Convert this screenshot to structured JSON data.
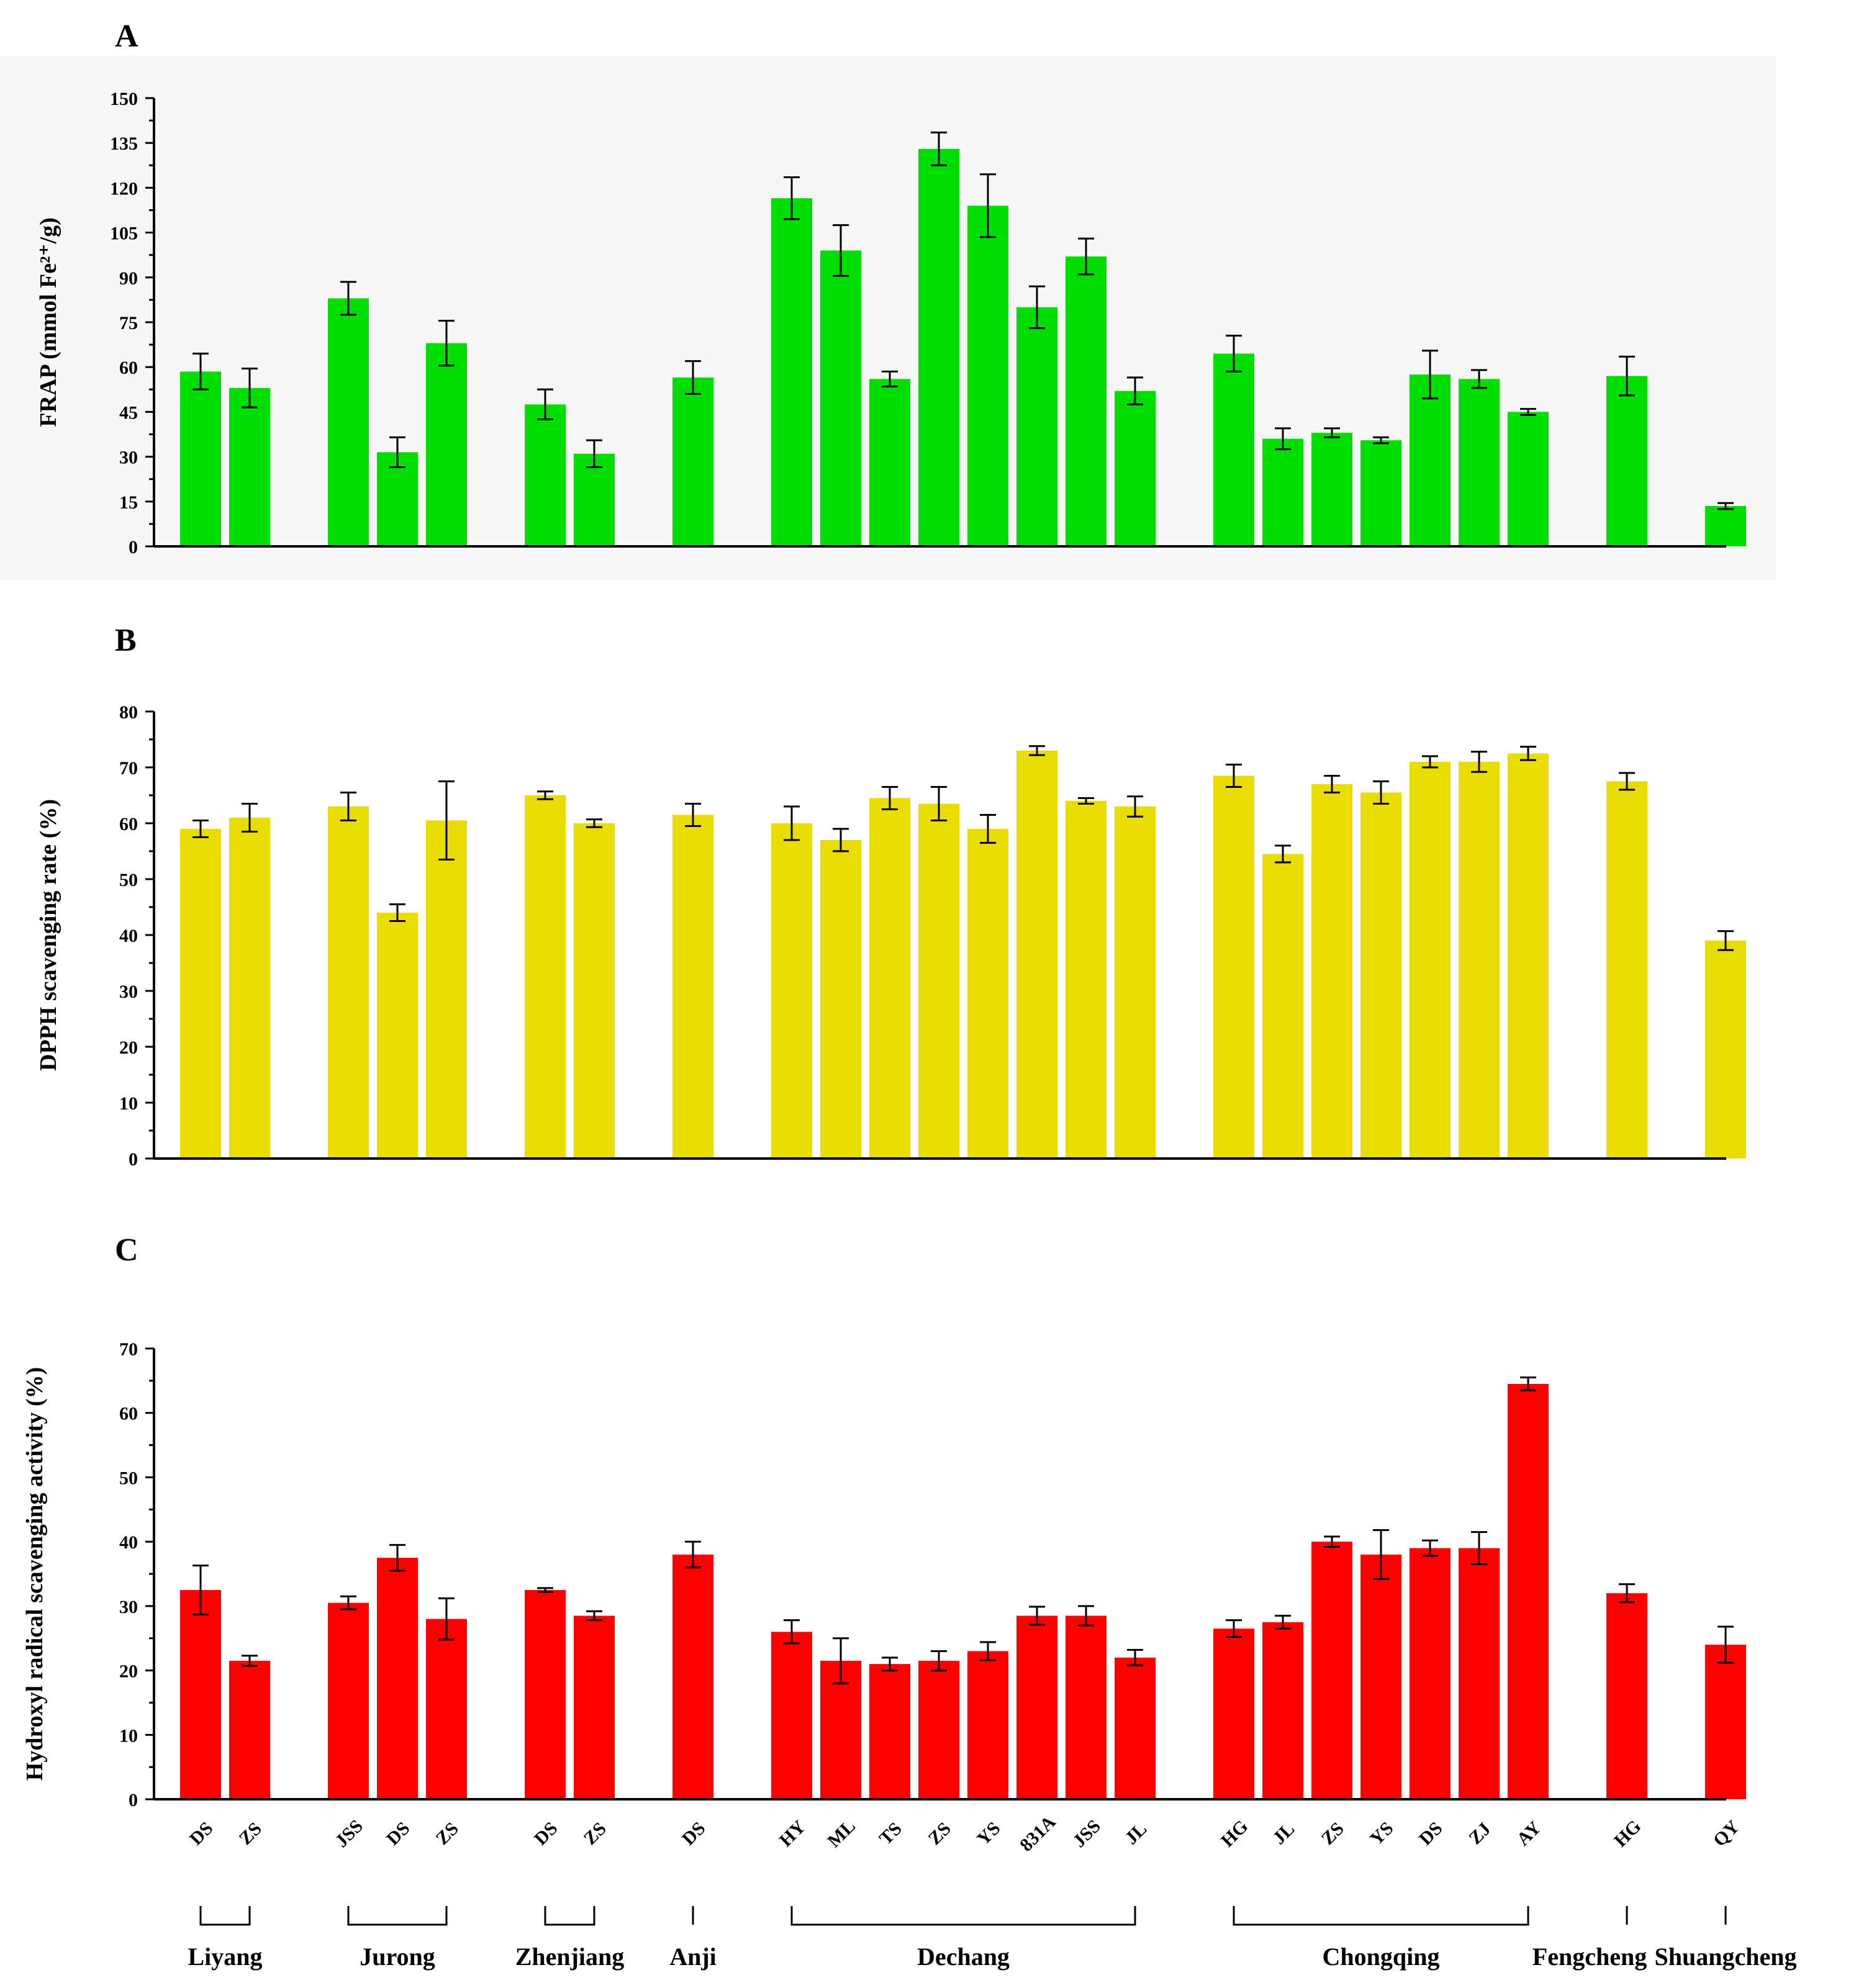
{
  "categories": [
    "DS",
    "ZS",
    "JSS",
    "DS",
    "ZS",
    "DS",
    "ZS",
    "DS",
    "HY",
    "ML",
    "TS",
    "ZS",
    "YS",
    "831A",
    "JSS",
    "JL",
    "HG",
    "JL",
    "ZS",
    "YS",
    "DS",
    "ZJ",
    "AY",
    "HG",
    "QY"
  ],
  "groups": [
    {
      "name": "Liyang",
      "start": 0,
      "end": 1
    },
    {
      "name": "Jurong",
      "start": 2,
      "end": 4
    },
    {
      "name": "Zhenjiang",
      "start": 5,
      "end": 6
    },
    {
      "name": "Anji",
      "start": 7,
      "end": 7
    },
    {
      "name": "Dechang",
      "start": 8,
      "end": 15
    },
    {
      "name": "Chongqing",
      "start": 16,
      "end": 22
    },
    {
      "name": "Fengcheng",
      "start": 23,
      "end": 23
    },
    {
      "name": "Shuangcheng",
      "start": 24,
      "end": 24
    }
  ],
  "chart_data": [
    {
      "type": "bar",
      "panel": "A",
      "title": "",
      "xlabel": "",
      "ylabel": "FRAP (mmol Fe²⁺/g)",
      "ylim": [
        0,
        150
      ],
      "yticks": [
        0,
        15,
        30,
        45,
        60,
        75,
        90,
        105,
        120,
        135,
        150
      ],
      "color": "#00dd00",
      "background": "#f7f7f7",
      "values": [
        58.5,
        53,
        83,
        31.5,
        68,
        47.5,
        31,
        56.5,
        116.5,
        99,
        56,
        133,
        114,
        80,
        97,
        52,
        64.5,
        36,
        38,
        35.5,
        57.5,
        56,
        45,
        57,
        13.5
      ],
      "errors": [
        6,
        6.5,
        5.5,
        5,
        7.5,
        5,
        4.5,
        5.5,
        7,
        8.5,
        2.5,
        5.5,
        10.5,
        7,
        6,
        4.5,
        6,
        3.5,
        1.5,
        1,
        8,
        3,
        1,
        6.5,
        1
      ]
    },
    {
      "type": "bar",
      "panel": "B",
      "title": "",
      "xlabel": "",
      "ylabel": "DPPH  scavenging rate (%)",
      "ylim": [
        0,
        80
      ],
      "yticks": [
        0,
        10,
        20,
        30,
        40,
        50,
        60,
        70,
        80
      ],
      "color": "#e8dc00",
      "background": "#ffffff",
      "values": [
        59,
        61,
        63,
        44,
        60.5,
        65,
        60,
        61.5,
        60,
        57,
        64.5,
        63.5,
        59,
        73,
        64,
        63,
        68.5,
        54.5,
        67,
        65.5,
        71,
        71,
        72.5,
        67.5,
        39
      ],
      "errors": [
        1.5,
        2.5,
        2.5,
        1.5,
        7,
        0.7,
        0.7,
        2,
        3,
        2,
        2,
        3,
        2.5,
        0.8,
        0.5,
        1.8,
        2,
        1.5,
        1.5,
        2,
        1,
        1.8,
        1.2,
        1.5,
        1.7
      ]
    },
    {
      "type": "bar",
      "panel": "C",
      "title": "",
      "xlabel": "",
      "ylabel": "Hydroxyl radical scavenging activity (%)",
      "ylim": [
        0,
        70
      ],
      "yticks": [
        0,
        10,
        20,
        30,
        40,
        50,
        60,
        70
      ],
      "color": "#ff0000",
      "background": "#ffffff",
      "values": [
        32.5,
        21.5,
        30.5,
        37.5,
        28,
        32.5,
        28.5,
        38,
        26,
        21.5,
        21,
        21.5,
        23,
        28.5,
        28.5,
        22,
        26.5,
        27.5,
        40,
        38,
        39,
        39,
        64.5,
        32,
        24
      ],
      "errors": [
        3.8,
        0.8,
        1,
        2,
        3.2,
        0.3,
        0.7,
        2,
        1.8,
        3.5,
        1,
        1.5,
        1.4,
        1.4,
        1.5,
        1.2,
        1.3,
        1,
        0.8,
        3.8,
        1.2,
        2.5,
        1,
        1.4,
        2.8
      ]
    }
  ]
}
